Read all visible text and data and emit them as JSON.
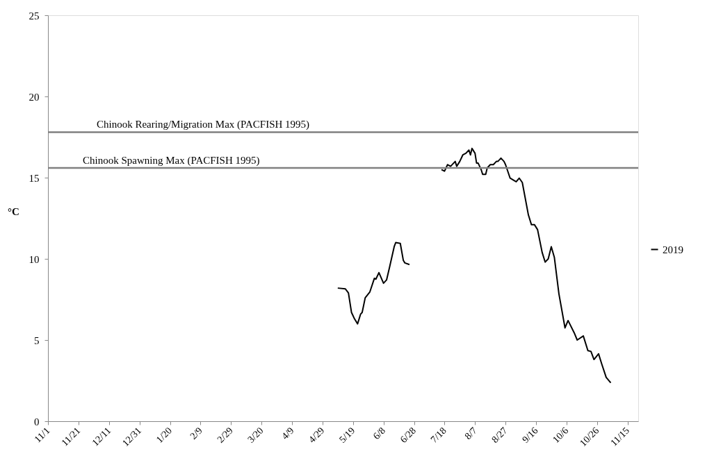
{
  "chart_data": {
    "type": "line",
    "ylabel": "°C",
    "xlim": [
      "2019-11-01",
      "2020-11-22"
    ],
    "ylim": [
      0,
      25
    ],
    "yticks": [
      0,
      5,
      10,
      15,
      20,
      25
    ],
    "xticks": [
      {
        "value": "2019-11-01",
        "label": "11/1"
      },
      {
        "value": "2019-11-21",
        "label": "11/21"
      },
      {
        "value": "2019-12-11",
        "label": "12/11"
      },
      {
        "value": "2019-12-31",
        "label": "12/31"
      },
      {
        "value": "2020-01-20",
        "label": "1/20"
      },
      {
        "value": "2020-02-09",
        "label": "2/9"
      },
      {
        "value": "2020-02-29",
        "label": "2/29"
      },
      {
        "value": "2020-03-20",
        "label": "3/20"
      },
      {
        "value": "2020-04-09",
        "label": "4/9"
      },
      {
        "value": "2020-04-29",
        "label": "4/29"
      },
      {
        "value": "2020-05-19",
        "label": "5/19"
      },
      {
        "value": "2020-06-08",
        "label": "6/8"
      },
      {
        "value": "2020-06-28",
        "label": "6/28"
      },
      {
        "value": "2020-07-18",
        "label": "7/18"
      },
      {
        "value": "2020-08-07",
        "label": "8/7"
      },
      {
        "value": "2020-08-27",
        "label": "8/27"
      },
      {
        "value": "2020-09-16",
        "label": "9/16"
      },
      {
        "value": "2020-10-06",
        "label": "10/6"
      },
      {
        "value": "2020-10-26",
        "label": "10/26"
      },
      {
        "value": "2020-11-15",
        "label": "11/15"
      }
    ],
    "grid": false,
    "legend": "right",
    "marker": "none",
    "line_style": "solid",
    "ref_lines": [
      {
        "axis": "y",
        "value": 17.8,
        "label": "Chinook Rearing/Migration  Max (PACFISH 1995)",
        "color": "#808080"
      },
      {
        "axis": "y",
        "value": 15.6,
        "label": "Chinook Spawning Max (PACFISH 1995)",
        "color": "#808080"
      }
    ],
    "series": [
      {
        "name": "2019",
        "color": "#000000",
        "x": [
          "2020-05-09",
          "2020-05-14",
          "2020-05-16",
          "2020-05-18",
          "2020-05-20",
          "2020-05-22",
          "2020-05-24",
          "2020-05-25",
          "2020-05-27",
          "2020-05-30",
          "2020-06-02",
          "2020-06-03",
          "2020-06-05",
          "2020-06-08",
          "2020-06-10",
          "2020-06-12",
          "2020-06-15",
          "2020-06-16",
          "2020-06-19",
          "2020-06-21",
          "2020-06-22",
          "2020-06-25",
          "2020-07-05",
          "2020-07-16",
          "2020-07-18",
          "2020-07-20",
          "2020-07-22",
          "2020-07-25",
          "2020-07-26",
          "2020-07-28",
          "2020-07-30",
          "2020-08-01",
          "2020-08-03",
          "2020-08-04",
          "2020-08-05",
          "2020-08-07",
          "2020-08-08",
          "2020-08-09",
          "2020-08-11",
          "2020-08-12",
          "2020-08-14",
          "2020-08-15",
          "2020-08-17",
          "2020-08-19",
          "2020-08-21",
          "2020-08-22",
          "2020-08-24",
          "2020-08-26",
          "2020-08-27",
          "2020-08-30",
          "2020-09-02",
          "2020-09-03",
          "2020-09-05",
          "2020-09-07",
          "2020-09-11",
          "2020-09-13",
          "2020-09-15",
          "2020-09-17",
          "2020-09-20",
          "2020-09-22",
          "2020-09-24",
          "2020-09-26",
          "2020-09-28",
          "2020-10-01",
          "2020-10-05",
          "2020-10-07",
          "2020-10-11",
          "2020-10-13",
          "2020-10-17",
          "2020-10-20",
          "2020-10-22",
          "2020-10-24",
          "2020-10-27",
          "2020-10-29",
          "2020-11-01",
          "2020-11-04"
        ],
        "values": [
          8.2,
          8.15,
          7.9,
          6.7,
          6.3,
          6.0,
          6.6,
          6.7,
          7.6,
          7.95,
          8.8,
          8.75,
          9.15,
          8.5,
          8.7,
          9.5,
          10.75,
          11.0,
          10.95,
          9.9,
          9.75,
          9.65,
          null,
          15.5,
          15.4,
          15.8,
          15.7,
          16.0,
          15.7,
          16.0,
          16.4,
          16.5,
          16.7,
          16.4,
          16.8,
          16.5,
          15.9,
          15.9,
          15.5,
          15.2,
          15.2,
          15.6,
          15.8,
          15.8,
          16.0,
          16.0,
          16.2,
          16.0,
          15.8,
          14.97,
          14.8,
          14.75,
          14.97,
          14.7,
          12.7,
          12.1,
          12.1,
          11.8,
          10.4,
          9.8,
          10.0,
          10.75,
          10.1,
          7.85,
          5.75,
          6.2,
          5.45,
          5.0,
          5.25,
          4.35,
          4.3,
          3.8,
          4.15,
          3.55,
          2.7,
          2.37
        ]
      }
    ]
  }
}
